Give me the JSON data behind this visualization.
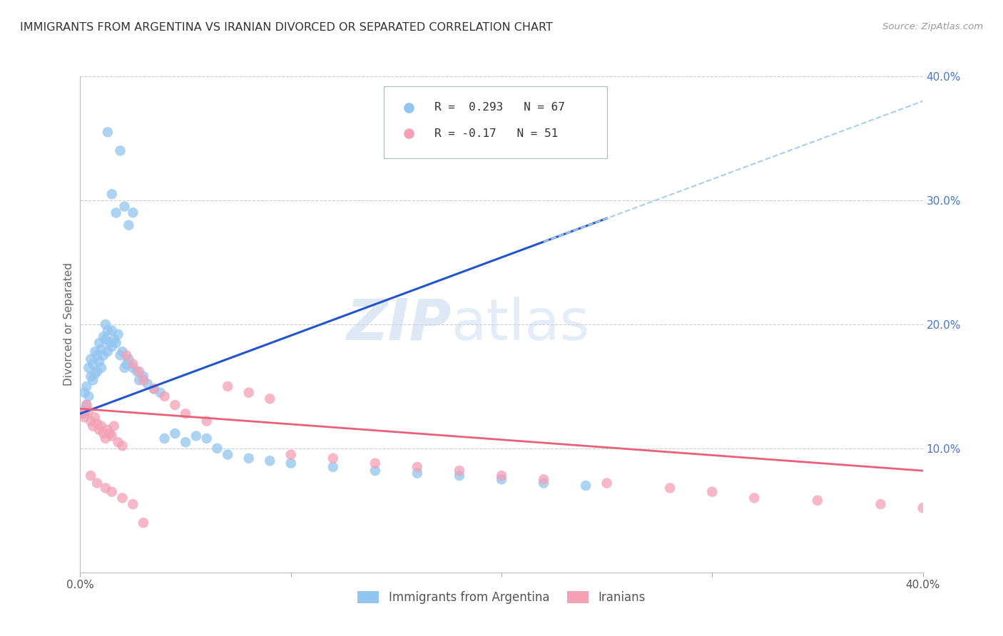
{
  "title": "IMMIGRANTS FROM ARGENTINA VS IRANIAN DIVORCED OR SEPARATED CORRELATION CHART",
  "source": "Source: ZipAtlas.com",
  "ylabel": "Divorced or Separated",
  "xlim": [
    0.0,
    0.4
  ],
  "ylim": [
    0.0,
    0.4
  ],
  "xticks": [
    0.0,
    0.1,
    0.2,
    0.3,
    0.4
  ],
  "yticks": [
    0.1,
    0.2,
    0.3,
    0.4
  ],
  "xticklabels": [
    "0.0%",
    "",
    "",
    "",
    "40.0%"
  ],
  "yticklabels_right": [
    "10.0%",
    "20.0%",
    "30.0%",
    "40.0%"
  ],
  "legend1_label": "Immigrants from Argentina",
  "legend2_label": "Iranians",
  "R1": 0.293,
  "N1": 67,
  "R2": -0.17,
  "N2": 51,
  "color_blue": "#92C5F0",
  "color_pink": "#F4A0B5",
  "line_color_blue": "#2255CC",
  "line_color_pink": "#E8607A",
  "dashed_line_color": "#AACCEE",
  "watermark_zip": "ZIP",
  "watermark_atlas": "atlas",
  "background_color": "#FFFFFF",
  "grid_color": "#CCCCCC",
  "blue_x": [
    0.001,
    0.002,
    0.002,
    0.003,
    0.003,
    0.004,
    0.004,
    0.005,
    0.005,
    0.006,
    0.006,
    0.007,
    0.007,
    0.008,
    0.008,
    0.009,
    0.009,
    0.01,
    0.01,
    0.011,
    0.011,
    0.012,
    0.012,
    0.013,
    0.013,
    0.014,
    0.015,
    0.015,
    0.016,
    0.017,
    0.018,
    0.019,
    0.02,
    0.021,
    0.022,
    0.023,
    0.025,
    0.027,
    0.028,
    0.03,
    0.032,
    0.035,
    0.038,
    0.04,
    0.045,
    0.05,
    0.055,
    0.06,
    0.065,
    0.07,
    0.08,
    0.09,
    0.1,
    0.12,
    0.14,
    0.16,
    0.18,
    0.2,
    0.22,
    0.24,
    0.013,
    0.015,
    0.017,
    0.019,
    0.021,
    0.023,
    0.025
  ],
  "blue_y": [
    0.13,
    0.128,
    0.145,
    0.135,
    0.15,
    0.142,
    0.165,
    0.158,
    0.172,
    0.155,
    0.168,
    0.16,
    0.178,
    0.162,
    0.175,
    0.17,
    0.185,
    0.165,
    0.18,
    0.175,
    0.19,
    0.188,
    0.2,
    0.195,
    0.178,
    0.185,
    0.182,
    0.195,
    0.188,
    0.185,
    0.192,
    0.175,
    0.178,
    0.165,
    0.168,
    0.172,
    0.165,
    0.162,
    0.155,
    0.158,
    0.152,
    0.148,
    0.145,
    0.108,
    0.112,
    0.105,
    0.11,
    0.108,
    0.1,
    0.095,
    0.092,
    0.09,
    0.088,
    0.085,
    0.082,
    0.08,
    0.078,
    0.075,
    0.072,
    0.07,
    0.355,
    0.305,
    0.29,
    0.34,
    0.295,
    0.28,
    0.29
  ],
  "pink_x": [
    0.001,
    0.002,
    0.003,
    0.004,
    0.005,
    0.006,
    0.007,
    0.008,
    0.009,
    0.01,
    0.011,
    0.012,
    0.013,
    0.014,
    0.015,
    0.016,
    0.018,
    0.02,
    0.022,
    0.025,
    0.028,
    0.03,
    0.035,
    0.04,
    0.045,
    0.05,
    0.06,
    0.07,
    0.08,
    0.09,
    0.1,
    0.12,
    0.14,
    0.16,
    0.18,
    0.2,
    0.22,
    0.25,
    0.28,
    0.3,
    0.32,
    0.35,
    0.38,
    0.4,
    0.005,
    0.008,
    0.012,
    0.015,
    0.02,
    0.025,
    0.03
  ],
  "pink_y": [
    0.128,
    0.125,
    0.135,
    0.13,
    0.122,
    0.118,
    0.125,
    0.12,
    0.115,
    0.118,
    0.112,
    0.108,
    0.115,
    0.112,
    0.11,
    0.118,
    0.105,
    0.102,
    0.175,
    0.168,
    0.162,
    0.155,
    0.148,
    0.142,
    0.135,
    0.128,
    0.122,
    0.15,
    0.145,
    0.14,
    0.095,
    0.092,
    0.088,
    0.085,
    0.082,
    0.078,
    0.075,
    0.072,
    0.068,
    0.065,
    0.06,
    0.058,
    0.055,
    0.052,
    0.078,
    0.072,
    0.068,
    0.065,
    0.06,
    0.055,
    0.04
  ]
}
